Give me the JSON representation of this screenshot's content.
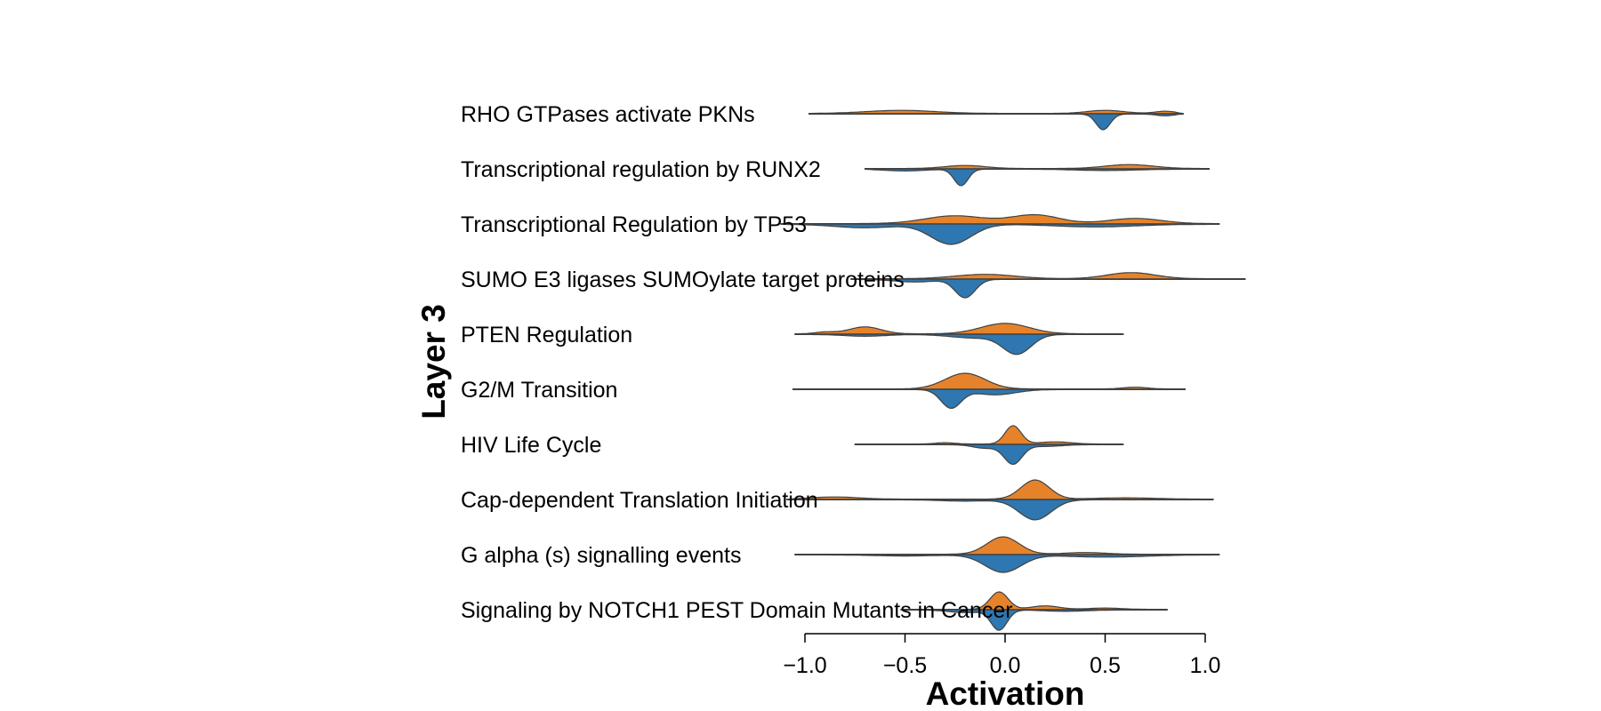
{
  "chart_data": {
    "type": "split-violin",
    "xlabel": "Activation",
    "ylabel": "Layer 3",
    "xlim": [
      -1.2,
      1.25
    ],
    "xticks": [
      {
        "value": -1.0,
        "label": "−1.0"
      },
      {
        "value": -0.5,
        "label": "−0.5"
      },
      {
        "value": 0.0,
        "label": "0.0"
      },
      {
        "value": 0.5,
        "label": "0.5"
      },
      {
        "value": 1.0,
        "label": "1.0"
      }
    ],
    "grid": false,
    "colors": {
      "upper": "#e6832a",
      "lower": "#2e77b0",
      "outline": "#404040"
    },
    "rows": [
      {
        "label": "RHO GTPases activate PKNs",
        "range": [
          -0.98,
          0.89
        ],
        "upper": [
          [
            -0.52,
            0.035,
            0.17
          ],
          [
            0.5,
            0.035,
            0.09
          ],
          [
            0.8,
            0.025,
            0.05
          ]
        ],
        "lower": [
          [
            0.49,
            0.18,
            0.035
          ],
          [
            0.8,
            0.02,
            0.04
          ]
        ]
      },
      {
        "label": "Transcriptional regulation by RUNX2",
        "range": [
          -0.7,
          1.02
        ],
        "upper": [
          [
            -0.2,
            0.035,
            0.1
          ],
          [
            0.62,
            0.045,
            0.12
          ]
        ],
        "lower": [
          [
            -0.22,
            0.19,
            0.035
          ],
          [
            -0.5,
            0.02,
            0.1
          ],
          [
            0.5,
            0.015,
            0.15
          ]
        ]
      },
      {
        "label": "Transcriptional Regulation by TP53",
        "range": [
          -1.12,
          1.07
        ],
        "upper": [
          [
            -0.25,
            0.09,
            0.15
          ],
          [
            0.15,
            0.1,
            0.12
          ],
          [
            0.65,
            0.06,
            0.13
          ]
        ],
        "lower": [
          [
            -0.27,
            0.23,
            0.1
          ],
          [
            -0.7,
            0.04,
            0.15
          ],
          [
            0.45,
            0.03,
            0.2
          ]
        ]
      },
      {
        "label": "SUMO E3 ligases SUMOylate target proteins",
        "range": [
          -0.77,
          1.2
        ],
        "upper": [
          [
            -0.1,
            0.05,
            0.15
          ],
          [
            0.63,
            0.07,
            0.12
          ]
        ],
        "lower": [
          [
            -0.2,
            0.21,
            0.05
          ],
          [
            -0.45,
            0.03,
            0.1
          ]
        ]
      },
      {
        "label": "PTEN Regulation",
        "range": [
          -1.05,
          0.59
        ],
        "upper": [
          [
            -0.7,
            0.08,
            0.08
          ],
          [
            -0.9,
            0.02,
            0.05
          ],
          [
            0.0,
            0.12,
            0.12
          ]
        ],
        "lower": [
          [
            0.06,
            0.22,
            0.07
          ],
          [
            -0.15,
            0.04,
            0.12
          ],
          [
            -0.7,
            0.02,
            0.1
          ]
        ]
      },
      {
        "label": "G2/M Transition",
        "range": [
          -1.06,
          0.9
        ],
        "upper": [
          [
            -0.2,
            0.18,
            0.1
          ],
          [
            0.65,
            0.02,
            0.06
          ]
        ],
        "lower": [
          [
            -0.27,
            0.21,
            0.05
          ],
          [
            -0.05,
            0.06,
            0.1
          ]
        ]
      },
      {
        "label": "HIV Life Cycle",
        "range": [
          -0.75,
          0.59
        ],
        "upper": [
          [
            0.04,
            0.21,
            0.04
          ],
          [
            0.25,
            0.025,
            0.08
          ],
          [
            -0.3,
            0.015,
            0.05
          ]
        ],
        "lower": [
          [
            0.04,
            0.22,
            0.045
          ],
          [
            -0.1,
            0.04,
            0.06
          ],
          [
            0.2,
            0.02,
            0.08
          ]
        ]
      },
      {
        "label": "Cap-dependent Translation Initiation",
        "range": [
          -1.09,
          1.04
        ],
        "upper": [
          [
            0.15,
            0.22,
            0.07
          ],
          [
            -0.85,
            0.025,
            0.12
          ],
          [
            0.6,
            0.015,
            0.15
          ]
        ],
        "lower": [
          [
            0.15,
            0.23,
            0.08
          ],
          [
            -0.2,
            0.015,
            0.12
          ]
        ]
      },
      {
        "label": "G alpha (s) signalling events",
        "range": [
          -1.05,
          1.07
        ],
        "upper": [
          [
            -0.01,
            0.2,
            0.08
          ],
          [
            0.4,
            0.02,
            0.1
          ]
        ],
        "lower": [
          [
            -0.01,
            0.2,
            0.09
          ],
          [
            0.5,
            0.025,
            0.2
          ],
          [
            -0.5,
            0.012,
            0.15
          ]
        ]
      },
      {
        "label": "Signaling by NOTCH1 PEST Domain Mutants in Cancer",
        "range": [
          -0.52,
          0.81
        ],
        "upper": [
          [
            -0.03,
            0.2,
            0.045
          ],
          [
            0.2,
            0.04,
            0.07
          ],
          [
            0.5,
            0.015,
            0.08
          ]
        ],
        "lower": [
          [
            -0.03,
            0.23,
            0.04
          ],
          [
            -0.2,
            0.03,
            0.08
          ],
          [
            0.3,
            0.015,
            0.1
          ]
        ]
      }
    ]
  }
}
